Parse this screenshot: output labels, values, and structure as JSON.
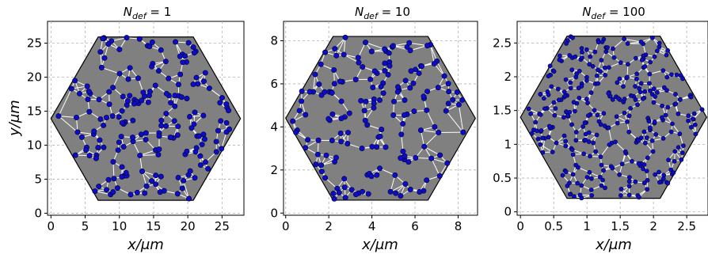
{
  "chart_data": [
    {
      "type": "scatter",
      "title_base": "N",
      "title_sub": "def",
      "title_rest": " = 1",
      "xlabel": "x/μm",
      "ylabel": "y/μm",
      "xlim": [
        -0.5,
        28.2
      ],
      "ylim": [
        -0.3,
        28.2
      ],
      "xticks": [
        0,
        5,
        10,
        15,
        20,
        25
      ],
      "xtick_labels": [
        "0",
        "5",
        "10",
        "15",
        "20",
        "25"
      ],
      "yticks": [
        0,
        5,
        10,
        15,
        20,
        25
      ],
      "ytick_labels": [
        "0",
        "5",
        "10",
        "15",
        "20",
        "25"
      ],
      "hexagon": [
        [
          0,
          13.9
        ],
        [
          6.9,
          1.9
        ],
        [
          20.8,
          1.9
        ],
        [
          27.7,
          13.9
        ],
        [
          20.8,
          25.9
        ],
        [
          6.9,
          25.9
        ]
      ],
      "n_points": 190,
      "grid": true,
      "seed": 11
    },
    {
      "type": "scatter",
      "title_base": "N",
      "title_sub": "def",
      "title_rest": " = 10",
      "xlabel": "x/μm",
      "ylabel": "",
      "xlim": [
        -0.1,
        8.9
      ],
      "ylim": [
        -0.1,
        8.9
      ],
      "xticks": [
        0,
        2,
        4,
        6,
        8
      ],
      "xtick_labels": [
        "0",
        "2",
        "4",
        "6",
        "8"
      ],
      "yticks": [
        0,
        2,
        4,
        6,
        8
      ],
      "ytick_labels": [
        "0",
        "2",
        "4",
        "6",
        "8"
      ],
      "hexagon": [
        [
          0,
          4.4
        ],
        [
          2.2,
          0.6
        ],
        [
          6.6,
          0.6
        ],
        [
          8.8,
          4.4
        ],
        [
          6.6,
          8.2
        ],
        [
          2.2,
          8.2
        ]
      ],
      "n_points": 170,
      "grid": true,
      "seed": 23
    },
    {
      "type": "scatter",
      "title_base": "N",
      "title_sub": "def",
      "title_rest": " = 100",
      "xlabel": "x/μm",
      "ylabel": "",
      "xlim": [
        -0.05,
        2.82
      ],
      "ylim": [
        -0.05,
        2.82
      ],
      "xticks": [
        0,
        0.5,
        1,
        1.5,
        2,
        2.5
      ],
      "xtick_labels": [
        "0",
        "0.5",
        "1",
        "1.5",
        "2",
        "2.5"
      ],
      "yticks": [
        0,
        0.5,
        1,
        1.5,
        2,
        2.5
      ],
      "ytick_labels": [
        "0",
        "0.5",
        "1",
        "1.5",
        "2",
        "2.5"
      ],
      "hexagon": [
        [
          0,
          1.4
        ],
        [
          0.7,
          0.2
        ],
        [
          2.1,
          0.2
        ],
        [
          2.8,
          1.4
        ],
        [
          2.1,
          2.6
        ],
        [
          0.7,
          2.6
        ]
      ],
      "n_points": 330,
      "grid": true,
      "seed": 37
    }
  ],
  "colors": {
    "background": "#808080",
    "edges": "#ffffff",
    "points": "#0d0dc8",
    "boundary": "#000000"
  }
}
